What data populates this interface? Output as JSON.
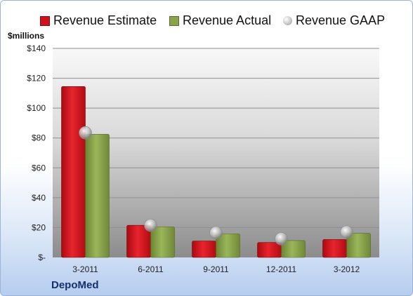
{
  "chart_data": {
    "type": "bar",
    "categories": [
      "3-2011",
      "6-2011",
      "9-2011",
      "12-2011",
      "3-2012"
    ],
    "series": [
      {
        "name": "Revenue Estimate",
        "type": "bar",
        "color": "#d0101a",
        "values": [
          114.5,
          21.5,
          11.0,
          10.0,
          12.0
        ]
      },
      {
        "name": "Revenue Actual",
        "type": "bar",
        "color": "#8aa34a",
        "values": [
          82.5,
          20.5,
          15.8,
          11.3,
          16.2
        ]
      },
      {
        "name": "Revenue GAAP",
        "type": "scatter",
        "color": "#b8b8b8",
        "values": [
          83.5,
          21.5,
          16.5,
          12.5,
          17.0
        ]
      }
    ],
    "ylabel": "$millions",
    "ylim": [
      0,
      140
    ],
    "yticks": [
      0,
      20,
      40,
      60,
      80,
      100,
      120,
      140
    ],
    "ytick_labels": [
      "$-",
      "$20",
      "$40",
      "$60",
      "$80",
      "$100",
      "$120",
      "$140"
    ],
    "grid": true,
    "legend": "top"
  },
  "company": "DepoMed"
}
